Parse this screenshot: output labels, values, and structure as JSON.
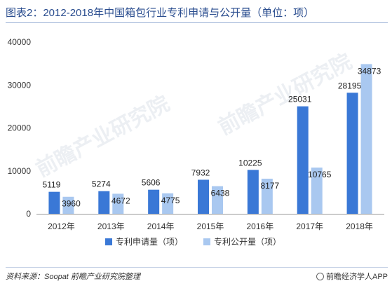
{
  "title": "图表2：2012-2018年中国箱包行业专利申请与公开量（单位：项）",
  "source": "资料来源：Soopat 前瞻产业研究院整理",
  "credit": "前瞻经济学人APP",
  "watermark": "前瞻产业研究院",
  "colors": {
    "series1": "#3a78d6",
    "series2": "#a9c8f0",
    "axis": "#999999",
    "title": "#2a4d8f"
  },
  "chart_data": {
    "type": "bar",
    "title": "图表2：2012-2018年中国箱包行业专利申请与公开量（单位：项）",
    "categories": [
      "2012年",
      "2013年",
      "2014年",
      "2015年",
      "2016年",
      "2017年",
      "2018年"
    ],
    "series": [
      {
        "name": "专利申请量（项）",
        "values": [
          5119,
          5274,
          5606,
          7932,
          10225,
          25031,
          28195
        ]
      },
      {
        "name": "专利公开量（项）",
        "values": [
          3960,
          4672,
          4775,
          6438,
          8177,
          10765,
          34873
        ]
      }
    ],
    "yticks": [
      "0",
      "10000",
      "20000",
      "30000",
      "40000"
    ],
    "ylim": [
      0,
      40000
    ],
    "grid": false,
    "legend": "bottom-center"
  }
}
